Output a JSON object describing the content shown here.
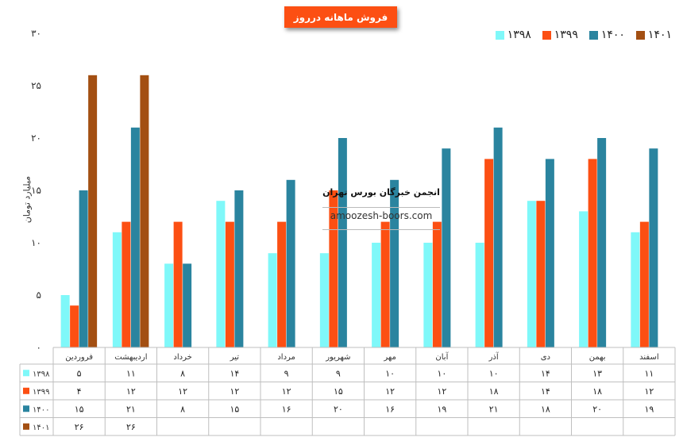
{
  "title": "فروش ماهانه درروز",
  "watermark": {
    "name": "انجمن خبرگان بورس تهران",
    "url": "amoozesh-boors.com"
  },
  "chart_data": {
    "type": "bar",
    "ylabel": "میلیارد تومان",
    "ylim": [
      0,
      30
    ],
    "yticks": [
      "۰",
      "۵",
      "۱۰",
      "۱۵",
      "۲۰",
      "۲۵",
      "۳۰"
    ],
    "ytick_values": [
      0,
      5,
      10,
      15,
      20,
      25,
      30
    ],
    "grid": false,
    "legend_position": "top-right",
    "categories": [
      "فروردین",
      "اردیبهشت",
      "خرداد",
      "تیر",
      "مرداد",
      "شهریور",
      "مهر",
      "آبان",
      "آذر",
      "دی",
      "بهمن",
      "اسفند"
    ],
    "series": [
      {
        "name": "۱۳۹۸",
        "color": "#7ff8f9",
        "values": [
          5,
          11,
          8,
          14,
          9,
          9,
          10,
          10,
          10,
          14,
          13,
          11
        ],
        "labels": [
          "۵",
          "۱۱",
          "۸",
          "۱۴",
          "۹",
          "۹",
          "۱۰",
          "۱۰",
          "۱۰",
          "۱۴",
          "۱۳",
          "۱۱"
        ]
      },
      {
        "name": "۱۳۹۹",
        "color": "#fc4f13",
        "values": [
          4,
          12,
          12,
          12,
          12,
          15,
          12,
          12,
          18,
          14,
          18,
          12
        ],
        "labels": [
          "۴",
          "۱۲",
          "۱۲",
          "۱۲",
          "۱۲",
          "۱۵",
          "۱۲",
          "۱۲",
          "۱۸",
          "۱۴",
          "۱۸",
          "۱۲"
        ]
      },
      {
        "name": "۱۴۰۰",
        "color": "#2a849f",
        "values": [
          15,
          21,
          8,
          15,
          16,
          20,
          16,
          19,
          21,
          18,
          20,
          19
        ],
        "labels": [
          "۱۵",
          "۲۱",
          "۸",
          "۱۵",
          "۱۶",
          "۲۰",
          "۱۶",
          "۱۹",
          "۲۱",
          "۱۸",
          "۲۰",
          "۱۹"
        ]
      },
      {
        "name": "۱۴۰۱",
        "color": "#a34f12",
        "values": [
          26,
          26,
          null,
          null,
          null,
          null,
          null,
          null,
          null,
          null,
          null,
          null
        ],
        "labels": [
          "۲۶",
          "۲۶",
          "",
          "",
          "",
          "",
          "",
          "",
          "",
          "",
          "",
          ""
        ]
      }
    ]
  }
}
